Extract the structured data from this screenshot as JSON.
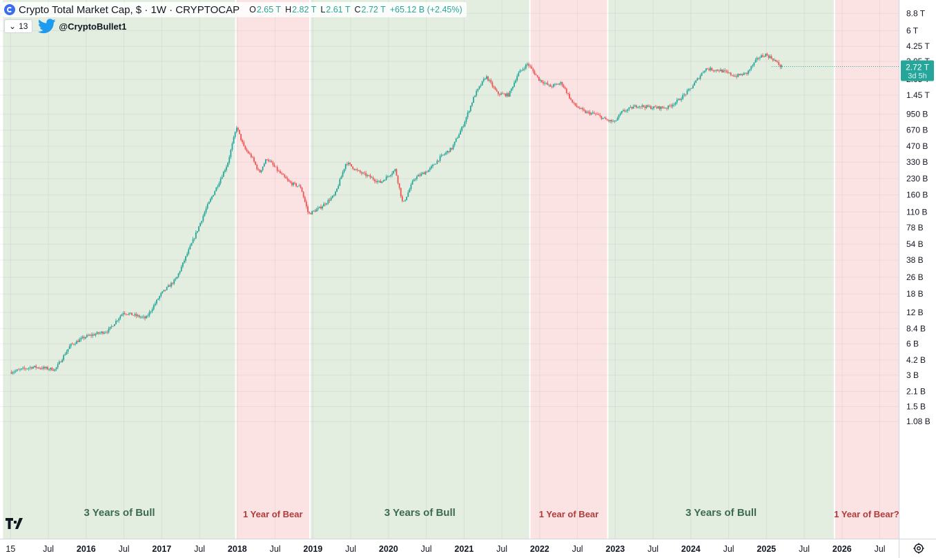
{
  "header": {
    "title": "Crypto Total Market Cap, $ · 1W · CRYPTOCAP",
    "ohlc": [
      {
        "label": "O",
        "value": "2.65 T"
      },
      {
        "label": "H",
        "value": "2.82 T"
      },
      {
        "label": "L",
        "value": "2.61 T"
      },
      {
        "label": "C",
        "value": "2.72 T"
      }
    ],
    "change": "+65.12 B (+2.45%)",
    "indicator_count": "13",
    "twitter_handle": "@CryptoBullet1"
  },
  "price_badge": {
    "value": "2.72 T",
    "countdown": "3d 5h"
  },
  "colors": {
    "bull_bg": "#e3ede0",
    "bear_bg": "#fbe3e4",
    "up_candle": "#26a69a",
    "down_candle": "#ef5350",
    "bull_text": "#3d6b4f",
    "bear_text": "#b03a3a",
    "badge": "#26a69a"
  },
  "chart_data": {
    "type": "candlestick",
    "title": "Crypto Total Market Cap, $ · 1W · CRYPTOCAP",
    "y_scale": "log",
    "ylim": [
      1300000000.0,
      7500000000000.0
    ],
    "x_tick_labels": [
      {
        "t": 2015.0,
        "label": "15"
      },
      {
        "t": 2015.5,
        "label": "Jul"
      },
      {
        "t": 2016.0,
        "label": "2016"
      },
      {
        "t": 2016.5,
        "label": "Jul"
      },
      {
        "t": 2017.0,
        "label": "2017"
      },
      {
        "t": 2017.5,
        "label": "Jul"
      },
      {
        "t": 2018.0,
        "label": "2018"
      },
      {
        "t": 2018.5,
        "label": "Jul"
      },
      {
        "t": 2019.0,
        "label": "2019"
      },
      {
        "t": 2019.5,
        "label": "Jul"
      },
      {
        "t": 2020.0,
        "label": "2020"
      },
      {
        "t": 2020.5,
        "label": "Jul"
      },
      {
        "t": 2021.0,
        "label": "2021"
      },
      {
        "t": 2021.5,
        "label": "Jul"
      },
      {
        "t": 2022.0,
        "label": "2022"
      },
      {
        "t": 2022.5,
        "label": "Jul"
      },
      {
        "t": 2023.0,
        "label": "2023"
      },
      {
        "t": 2023.5,
        "label": "Jul"
      },
      {
        "t": 2024.0,
        "label": "2024"
      },
      {
        "t": 2024.5,
        "label": "Jul"
      },
      {
        "t": 2025.0,
        "label": "2025"
      },
      {
        "t": 2025.5,
        "label": "Jul"
      },
      {
        "t": 2026.0,
        "label": "2026"
      },
      {
        "t": 2026.5,
        "label": "Jul"
      }
    ],
    "y_tick_labels": [
      {
        "v": 8800000000000.0,
        "label": "8.8 T"
      },
      {
        "v": 6000000000000.0,
        "label": "6 T"
      },
      {
        "v": 4250000000000.0,
        "label": "4.25 T"
      },
      {
        "v": 3050000000000.0,
        "label": "3.05 T"
      },
      {
        "v": 2050000000000.0,
        "label": "2.05 T"
      },
      {
        "v": 1450000000000.0,
        "label": "1.45 T"
      },
      {
        "v": 950000000000.0,
        "label": "950 B"
      },
      {
        "v": 670000000000.0,
        "label": "670 B"
      },
      {
        "v": 470000000000.0,
        "label": "470 B"
      },
      {
        "v": 330000000000.0,
        "label": "330 B"
      },
      {
        "v": 230000000000.0,
        "label": "230 B"
      },
      {
        "v": 160000000000.0,
        "label": "160 B"
      },
      {
        "v": 110000000000.0,
        "label": "110 B"
      },
      {
        "v": 78000000000.0,
        "label": "78 B"
      },
      {
        "v": 54000000000.0,
        "label": "54 B"
      },
      {
        "v": 38000000000.0,
        "label": "38 B"
      },
      {
        "v": 26000000000.0,
        "label": "26 B"
      },
      {
        "v": 18000000000.0,
        "label": "18 B"
      },
      {
        "v": 12000000000.0,
        "label": "12 B"
      },
      {
        "v": 8400000000.0,
        "label": "8.4 B"
      },
      {
        "v": 6000000000.0,
        "label": "6 B"
      },
      {
        "v": 4200000000.0,
        "label": "4.2 B"
      },
      {
        "v": 3000000000.0,
        "label": "3 B"
      },
      {
        "v": 2100000000.0,
        "label": "2.1 B"
      },
      {
        "v": 1500000000.0,
        "label": "1.5 B"
      },
      {
        "v": 1080000000.0,
        "label": "1.08 B"
      }
    ],
    "regions": [
      {
        "type": "bull",
        "start": 2014.9,
        "end": 2017.98,
        "label": "3 Years of Bull"
      },
      {
        "type": "bear",
        "start": 2017.98,
        "end": 2018.96,
        "label": "1 Year of Bear"
      },
      {
        "type": "bull",
        "start": 2018.96,
        "end": 2021.87,
        "label": "3 Years of Bull"
      },
      {
        "type": "bear",
        "start": 2021.87,
        "end": 2022.9,
        "label": "1 Year of Bear"
      },
      {
        "type": "bull",
        "start": 2022.9,
        "end": 2025.9,
        "label": "3 Years of Bull"
      },
      {
        "type": "bear",
        "start": 2025.9,
        "end": 2026.93,
        "label": "1 Year of Bear?"
      }
    ],
    "path": [
      [
        2015.0,
        3200000000.0
      ],
      [
        2015.3,
        3600000000.0
      ],
      [
        2015.6,
        3400000000.0
      ],
      [
        2015.8,
        5800000000.0
      ],
      [
        2016.0,
        7000000000.0
      ],
      [
        2016.3,
        8000000000.0
      ],
      [
        2016.5,
        12000000000.0
      ],
      [
        2016.8,
        10500000000.0
      ],
      [
        2017.0,
        18000000000.0
      ],
      [
        2017.2,
        25000000000.0
      ],
      [
        2017.45,
        65000000000.0
      ],
      [
        2017.6,
        120000000000.0
      ],
      [
        2017.75,
        200000000000.0
      ],
      [
        2017.88,
        320000000000.0
      ],
      [
        2018.0,
        720000000000.0
      ],
      [
        2018.1,
        450000000000.0
      ],
      [
        2018.2,
        370000000000.0
      ],
      [
        2018.3,
        260000000000.0
      ],
      [
        2018.4,
        360000000000.0
      ],
      [
        2018.55,
        270000000000.0
      ],
      [
        2018.7,
        210000000000.0
      ],
      [
        2018.85,
        190000000000.0
      ],
      [
        2018.95,
        105000000000.0
      ],
      [
        2019.1,
        120000000000.0
      ],
      [
        2019.3,
        160000000000.0
      ],
      [
        2019.45,
        330000000000.0
      ],
      [
        2019.6,
        270000000000.0
      ],
      [
        2019.75,
        240000000000.0
      ],
      [
        2019.9,
        210000000000.0
      ],
      [
        2020.1,
        280000000000.0
      ],
      [
        2020.2,
        130000000000.0
      ],
      [
        2020.35,
        230000000000.0
      ],
      [
        2020.55,
        280000000000.0
      ],
      [
        2020.7,
        370000000000.0
      ],
      [
        2020.85,
        450000000000.0
      ],
      [
        2021.0,
        750000000000.0
      ],
      [
        2021.15,
        1450000000000.0
      ],
      [
        2021.3,
        2200000000000.0
      ],
      [
        2021.45,
        1500000000000.0
      ],
      [
        2021.6,
        1450000000000.0
      ],
      [
        2021.72,
        2300000000000.0
      ],
      [
        2021.85,
        2900000000000.0
      ],
      [
        2022.0,
        2050000000000.0
      ],
      [
        2022.15,
        1750000000000.0
      ],
      [
        2022.3,
        1900000000000.0
      ],
      [
        2022.45,
        1200000000000.0
      ],
      [
        2022.6,
        1000000000000.0
      ],
      [
        2022.75,
        950000000000.0
      ],
      [
        2022.9,
        830000000000.0
      ],
      [
        2023.0,
        800000000000.0
      ],
      [
        2023.1,
        1000000000000.0
      ],
      [
        2023.3,
        1150000000000.0
      ],
      [
        2023.5,
        1100000000000.0
      ],
      [
        2023.7,
        1100000000000.0
      ],
      [
        2023.85,
        1300000000000.0
      ],
      [
        2024.0,
        1650000000000.0
      ],
      [
        2024.2,
        2600000000000.0
      ],
      [
        2024.4,
        2500000000000.0
      ],
      [
        2024.6,
        2200000000000.0
      ],
      [
        2024.75,
        2350000000000.0
      ],
      [
        2024.9,
        3300000000000.0
      ],
      [
        2025.0,
        3550000000000.0
      ],
      [
        2025.1,
        3200000000000.0
      ],
      [
        2025.2,
        2720000000000.0
      ]
    ]
  }
}
